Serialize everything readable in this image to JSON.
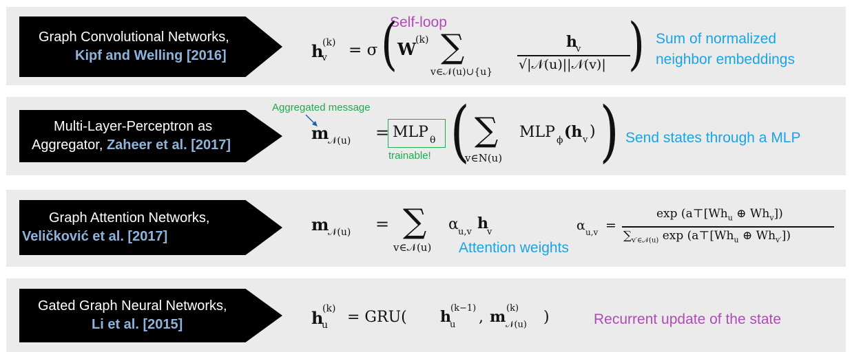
{
  "rows": {
    "gcn": {
      "title": "Graph Convolutional Networks,",
      "citation": "Kipf and Welling [2016]",
      "lhs_h": "h",
      "lhs_sub": "v",
      "lhs_sup": "(k)",
      "eq": "= σ",
      "W": "W",
      "W_sup": "(k)",
      "sum_sub": "v∈𝒩(u)∪{u}",
      "numerator": "h",
      "numerator_sub": "v",
      "denominator": "√|𝒩(u)||𝒩(v)|",
      "annotation_selfloop": "Self-loop",
      "desc_line1": "Sum of normalized",
      "desc_line2": "neighbor embeddings"
    },
    "mlp": {
      "title_line1": "Multi-Layer-Perceptron as",
      "title_line2_prefix": "Aggregator, ",
      "citation": "Zaheer et al. [2017]",
      "lhs": "m",
      "lhs_sub": "𝒩(u)",
      "eq": "=",
      "mlp_theta": "MLP",
      "theta": "θ",
      "sum_sub": "v∈N(u)",
      "mlp_phi": "MLP",
      "phi": "ϕ",
      "arg": "(h",
      "arg_sub": "v",
      "arg_close": ")",
      "annotation_message": "Aggregated message",
      "annotation_trainable": "trainable!",
      "desc": "Send states through a MLP"
    },
    "gat": {
      "title": "Graph Attention Networks,",
      "citation": "Veličković et al. [2017]",
      "lhs": "m",
      "lhs_sub": "𝒩(u)",
      "eq": "=",
      "sum_sub": "v∈𝒩(u)",
      "term": "α",
      "term_sub": "u,v",
      "term_h": "h",
      "term_h_sub": "v",
      "alpha_lhs": "α",
      "alpha_lhs_sub": "u,v",
      "alpha_eq": "=",
      "alpha_num": "exp (a⊤[Wh",
      "alpha_num_sub1": "u",
      "alpha_num_mid": " ⊕ Wh",
      "alpha_num_sub2": "v",
      "alpha_num_end": "])",
      "alpha_den_sigma": "∑",
      "alpha_den_sub": "v′∈𝒩(u)",
      "alpha_den": " exp (a⊤[Wh",
      "alpha_den_sub1": "u",
      "alpha_den_mid": " ⊕ Wh",
      "alpha_den_sub2": "v′",
      "alpha_den_end": "])",
      "desc": "Attention weights"
    },
    "ggnn": {
      "title": "Gated Graph Neural Networks,",
      "citation": "Li et al. [2015]",
      "lhs": "h",
      "lhs_sub": "u",
      "lhs_sup": "(k)",
      "rhs_pre": "= GRU(",
      "h": "h",
      "h_sub": "u",
      "h_sup": "(k−1)",
      "comma": ", ",
      "m": "m",
      "m_sub": "𝒩(u)",
      "m_sup": "(k)",
      "close": ")",
      "desc": "Recurrent update of the state"
    }
  },
  "colors": {
    "panel": "#ebebeb",
    "tag": "#000000",
    "citation": "#8fb4dc",
    "blue": "#1aa3e6",
    "purple": "#b04ab7",
    "green": "#22a84a"
  }
}
